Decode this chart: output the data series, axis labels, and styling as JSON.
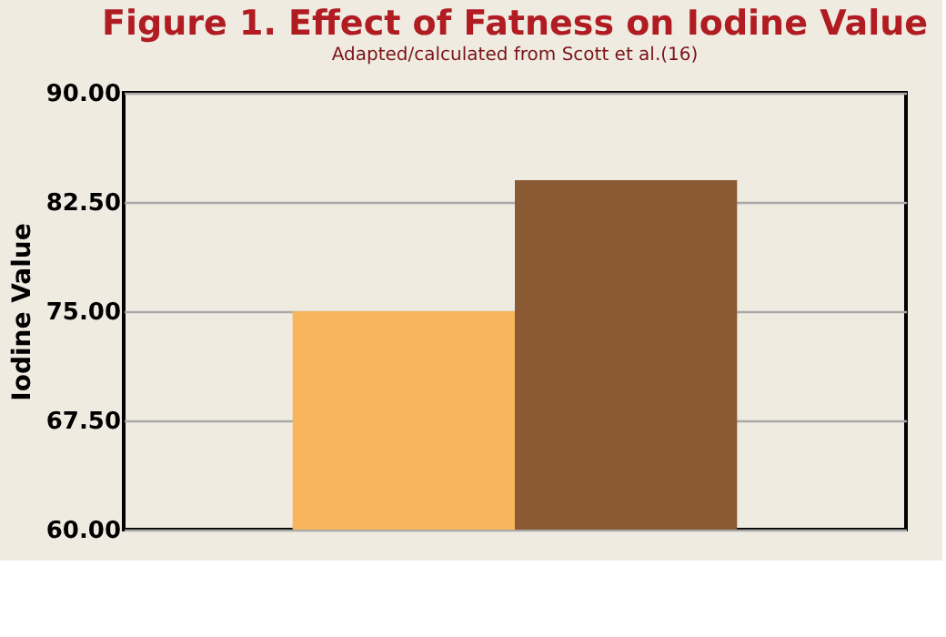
{
  "chart_data": {
    "type": "bar",
    "title": "Figure 1.  Effect of Fatness on Iodine Value",
    "subtitle": "Adapted/calculated from Scott et al.(16)",
    "ylabel": "Iodine Value",
    "categories": [
      null,
      null
    ],
    "values": [
      75.0,
      84.0
    ],
    "colors": [
      "#f9b55d",
      "#8a5a35"
    ],
    "ylim": [
      60,
      90
    ],
    "yticks": [
      {
        "value": 60,
        "label": "60.00"
      },
      {
        "value": 67.5,
        "label": "67.50"
      },
      {
        "value": 75,
        "label": "75.00"
      },
      {
        "value": 82.5,
        "label": "82.50"
      },
      {
        "value": 90,
        "label": "90.00"
      }
    ],
    "grid": "y"
  }
}
